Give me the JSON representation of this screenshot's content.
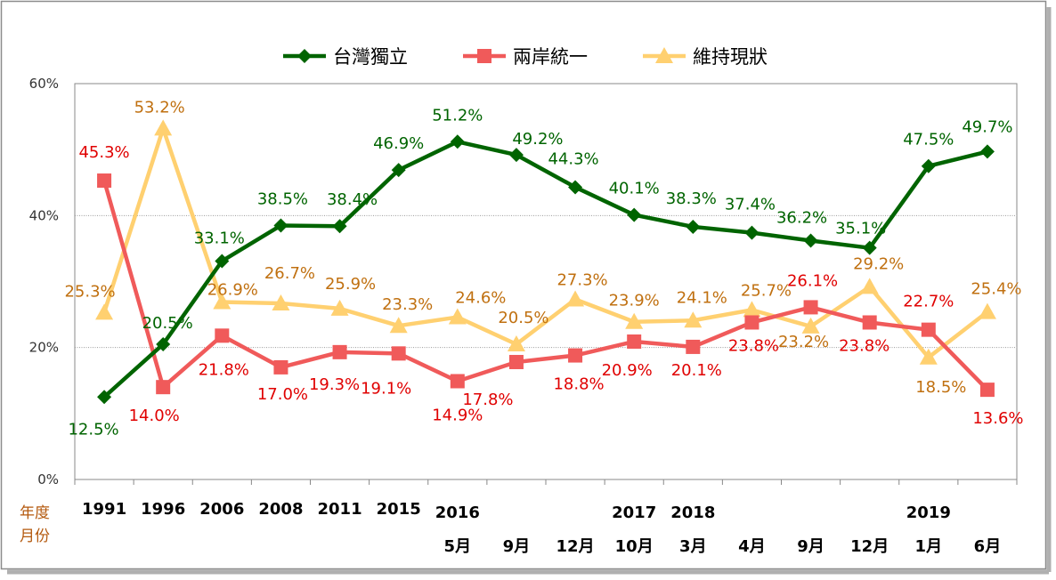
{
  "axis_labels": {
    "row1": "年度",
    "row2": "月份"
  },
  "chart_data": {
    "type": "line",
    "ylim": [
      0,
      60
    ],
    "yticks": [
      "0%",
      "20%",
      "40%",
      "60%"
    ],
    "grid": true,
    "legend_position": "top-center",
    "x_years": [
      "1991",
      "1996",
      "2006",
      "2008",
      "2011",
      "2015",
      "2016",
      "",
      "",
      "2017",
      "2018",
      "",
      "",
      "",
      "2019",
      ""
    ],
    "x_months": [
      "",
      "",
      "",
      "",
      "",
      "",
      "5月",
      "9月",
      "12月",
      "10月",
      "3月",
      "4月",
      "9月",
      "12月",
      "1月",
      "6月"
    ],
    "series": [
      {
        "name": "台灣獨立",
        "color": "#006400",
        "label_color": "#006400",
        "marker": "diamond",
        "values": [
          12.5,
          20.5,
          33.1,
          38.5,
          38.4,
          46.9,
          51.2,
          49.2,
          44.3,
          40.1,
          38.3,
          37.4,
          36.2,
          35.1,
          47.5,
          49.7
        ],
        "labels": [
          "12.5%",
          "20.5%",
          "33.1%",
          "38.5%",
          "38.4%",
          "46.9%",
          "51.2%",
          "49.2%",
          "44.3%",
          "40.1%",
          "38.3%",
          "37.4%",
          "36.2%",
          "35.1%",
          "47.5%",
          "49.7%"
        ]
      },
      {
        "name": "兩岸統一",
        "color": "#f05a5a",
        "label_color": "#e00000",
        "marker": "square",
        "values": [
          45.3,
          14.0,
          21.8,
          17.0,
          19.3,
          19.1,
          14.9,
          17.8,
          18.8,
          20.9,
          20.1,
          23.8,
          26.1,
          23.8,
          22.7,
          13.6
        ],
        "labels": [
          "45.3%",
          "14.0%",
          "21.8%",
          "17.0%",
          "19.3%",
          "19.1%",
          "14.9%",
          "17.8%",
          "18.8%",
          "20.9%",
          "20.1%",
          "23.8%",
          "26.1%",
          "23.8%",
          "22.7%",
          "13.6%"
        ]
      },
      {
        "name": "維持現狀",
        "color": "#ffd070",
        "label_color": "#c07010",
        "marker": "triangle",
        "values": [
          25.3,
          53.2,
          26.9,
          26.7,
          25.9,
          23.3,
          24.6,
          20.5,
          27.3,
          23.9,
          24.1,
          25.7,
          23.2,
          29.2,
          18.5,
          25.4
        ],
        "labels": [
          "25.3%",
          "53.2%",
          "26.9%",
          "26.7%",
          "25.9%",
          "23.3%",
          "24.6%",
          "20.5%",
          "27.3%",
          "23.9%",
          "24.1%",
          "25.7%",
          "23.2%",
          "29.2%",
          "18.5%",
          "25.4%"
        ]
      }
    ]
  }
}
